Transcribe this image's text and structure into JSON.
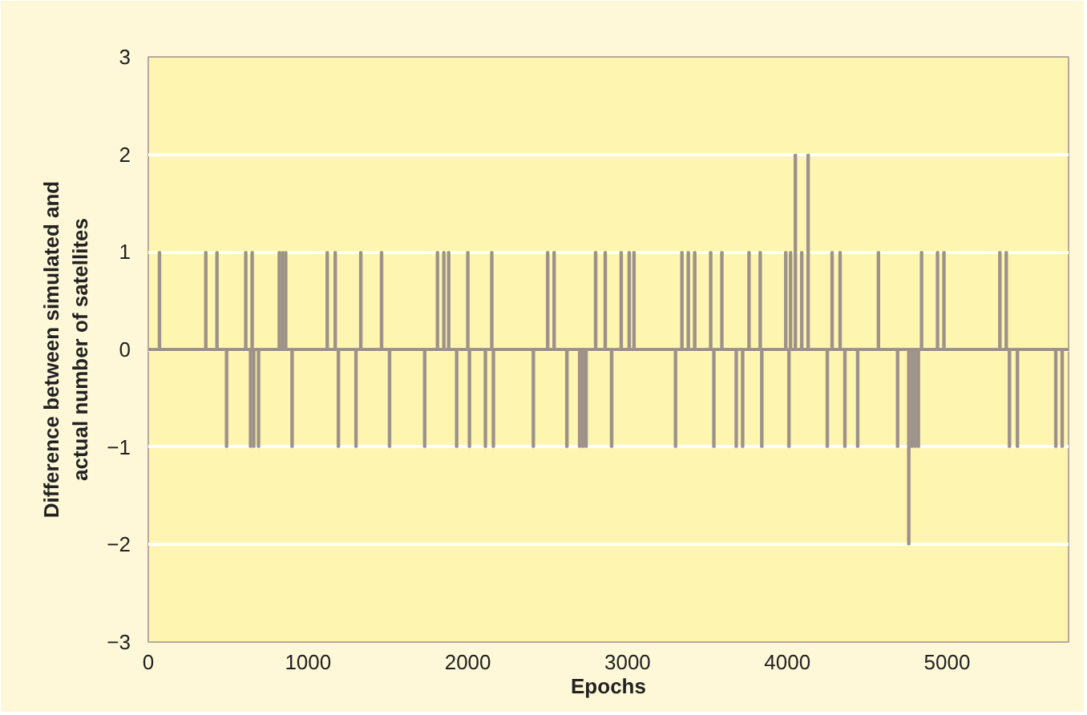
{
  "chart_data": {
    "type": "bar",
    "xlabel": "Epochs",
    "ylabel": "Difference between simulated and actual number of satellites",
    "x": [
      70,
      360,
      430,
      490,
      610,
      640,
      650,
      660,
      690,
      820,
      840,
      860,
      900,
      1120,
      1170,
      1190,
      1300,
      1330,
      1460,
      1510,
      1730,
      1810,
      1850,
      1880,
      1930,
      2000,
      2010,
      2110,
      2150,
      2160,
      2410,
      2500,
      2540,
      2620,
      2700,
      2720,
      2740,
      2800,
      2860,
      2900,
      2960,
      3010,
      3040,
      3300,
      3340,
      3380,
      3420,
      3520,
      3540,
      3590,
      3680,
      3720,
      3760,
      3830,
      3840,
      3990,
      4010,
      4020,
      4050,
      4090,
      4130,
      4250,
      4280,
      4330,
      4360,
      4440,
      4570,
      4690,
      4760,
      4780,
      4800,
      4820,
      4840,
      4940,
      4980,
      5330,
      5370,
      5390,
      5440,
      5680,
      5720
    ],
    "series": [
      {
        "color": "#9e928b",
        "values": [
          1,
          1,
          1,
          -1,
          1,
          -1,
          1,
          -1,
          -1,
          1,
          1,
          1,
          -1,
          1,
          1,
          -1,
          -1,
          1,
          1,
          -1,
          -1,
          1,
          1,
          1,
          -1,
          1,
          -1,
          -1,
          1,
          -1,
          -1,
          1,
          1,
          -1,
          -1,
          -1,
          -1,
          1,
          1,
          -1,
          1,
          1,
          1,
          -1,
          1,
          1,
          1,
          1,
          -1,
          1,
          -1,
          -1,
          1,
          1,
          -1,
          1,
          -1,
          1,
          2,
          1,
          2,
          -1,
          1,
          1,
          -1,
          -1,
          1,
          -1,
          -2,
          -1,
          -1,
          -1,
          1,
          1,
          1,
          1,
          1,
          -1,
          -1,
          -1,
          -1
        ]
      }
    ],
    "ref_lines": [
      {
        "axis": "y",
        "value": 0,
        "color": "#9e928b"
      }
    ],
    "xlim": [
      0,
      5760
    ],
    "xticks": [
      0,
      1000,
      2000,
      3000,
      4000,
      5000
    ],
    "ylim": [
      -3,
      3
    ],
    "yticks": [
      {
        "value": -3,
        "label": "−3"
      },
      {
        "value": -2,
        "label": "−2"
      },
      {
        "value": -1,
        "label": "−1"
      },
      0,
      1,
      2,
      3
    ],
    "grid": "y"
  }
}
